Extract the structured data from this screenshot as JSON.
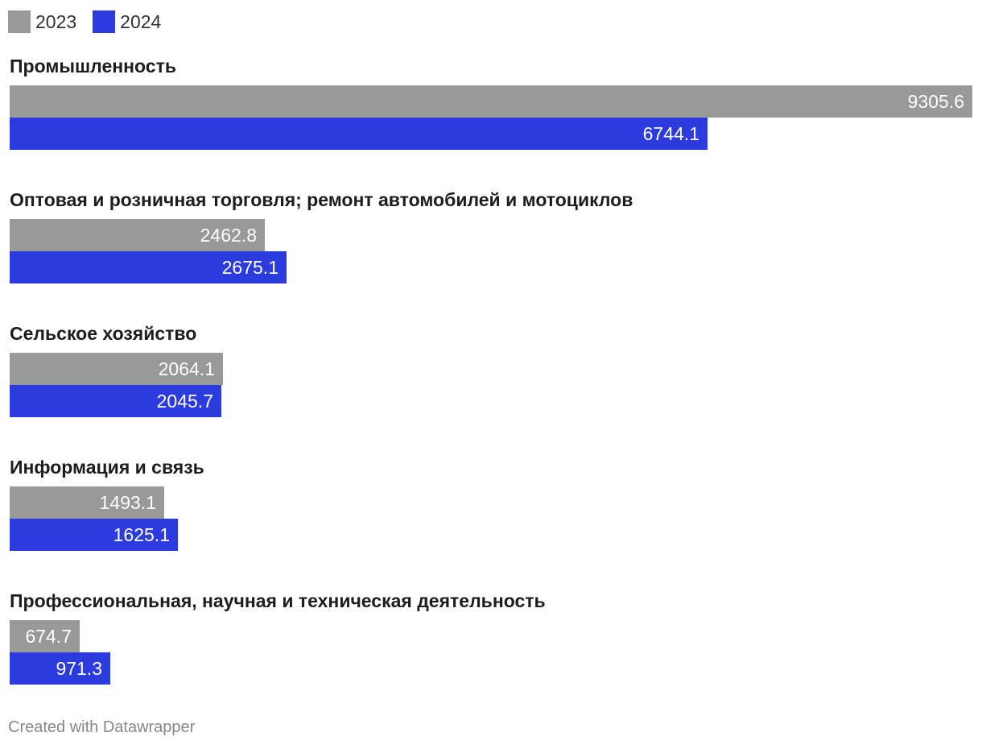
{
  "legend": [
    {
      "label": "2023",
      "color": "#999999"
    },
    {
      "label": "2024",
      "color": "#2b3bdd"
    }
  ],
  "chart_data": {
    "type": "bar",
    "orientation": "horizontal",
    "categories": [
      "Промышленность",
      "Оптовая и розничная торговля; ремонт автомобилей и мотоциклов",
      "Сельское хозяйство",
      "Информация и связь",
      "Профессиональная, научная и техническая деятельность"
    ],
    "series": [
      {
        "name": "2023",
        "color": "#999999",
        "values": [
          9305.6,
          2462.8,
          2064.1,
          1493.1,
          674.7
        ]
      },
      {
        "name": "2024",
        "color": "#2b3bdd",
        "values": [
          6744.1,
          2675.1,
          2045.7,
          1625.1,
          971.3
        ]
      }
    ],
    "value_labels": "inside-end",
    "xlim": [
      0,
      9305.6
    ],
    "grid": false
  },
  "footer": {
    "credit": "Created with Datawrapper"
  }
}
